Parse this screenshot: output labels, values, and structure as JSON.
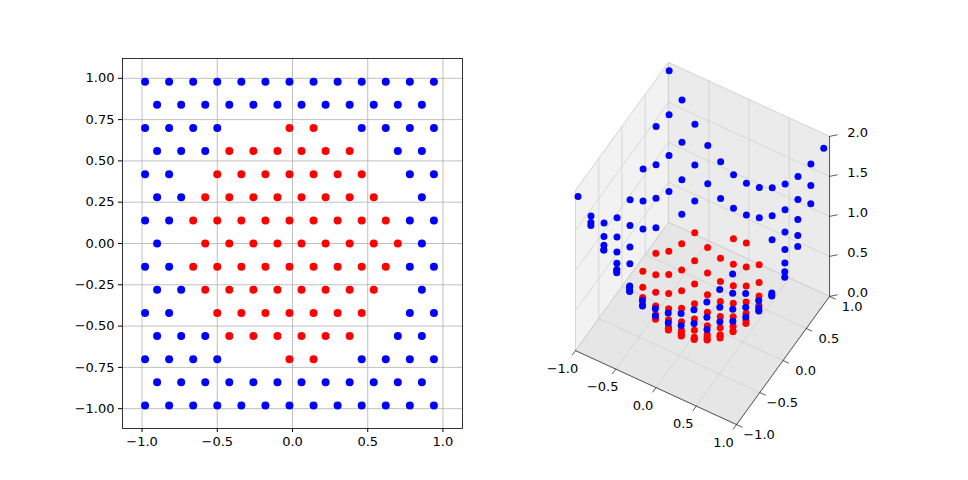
{
  "chart_data": [
    {
      "type": "scatter",
      "xlim": [
        -1.13,
        1.13
      ],
      "ylim": [
        -1.12,
        1.12
      ],
      "xticks": [
        {
          "value": -1,
          "label": "−1.0"
        },
        {
          "value": -0.5,
          "label": "−0.5"
        },
        {
          "value": 0,
          "label": "0.0"
        },
        0.5,
        {
          "value": 1,
          "label": "1.0"
        }
      ],
      "yticks": [
        {
          "value": -1,
          "label": "−1.00"
        },
        {
          "value": -0.75,
          "label": "−0.75"
        },
        {
          "value": -0.5,
          "label": "−0.50"
        },
        {
          "value": -0.25,
          "label": "−0.25"
        },
        {
          "value": 0,
          "label": "0.00"
        },
        0.25,
        {
          "value": 0.5,
          "label": "0.50"
        },
        0.75,
        {
          "value": 1,
          "label": "1.00"
        }
      ],
      "grid": true,
      "series": [
        {
          "color": "red",
          "x": [
            -0.02,
            0.14,
            -0.42,
            -0.26,
            -0.1,
            0.06,
            0.22,
            0.38,
            -0.5,
            -0.34,
            -0.18,
            -0.02,
            0.14,
            0.3,
            0.46,
            -0.58,
            -0.42,
            -0.26,
            -0.1,
            0.06,
            0.22,
            0.38,
            0.54,
            -0.66,
            -0.5,
            -0.34,
            -0.18,
            -0.02,
            0.14,
            0.3,
            0.46,
            0.62,
            -0.58,
            -0.42,
            -0.26,
            -0.1,
            0.06,
            0.22,
            0.38,
            0.54,
            0.7,
            -0.66,
            -0.5,
            -0.34,
            -0.18,
            -0.02,
            0.14,
            0.3,
            0.46,
            0.62,
            -0.58,
            -0.42,
            -0.26,
            -0.1,
            0.06,
            0.22,
            0.38,
            0.54,
            -0.5,
            -0.34,
            -0.18,
            -0.02,
            0.14,
            0.3,
            0.46,
            -0.42,
            -0.26,
            -0.1,
            0.06,
            0.22,
            0.38,
            -0.02,
            0.14
          ],
          "y": [
            -0.7,
            -0.7,
            -0.56,
            -0.56,
            -0.56,
            -0.56,
            -0.56,
            -0.56,
            -0.42,
            -0.42,
            -0.42,
            -0.42,
            -0.42,
            -0.42,
            -0.42,
            -0.28,
            -0.28,
            -0.28,
            -0.28,
            -0.28,
            -0.28,
            -0.28,
            -0.28,
            -0.14,
            -0.14,
            -0.14,
            -0.14,
            -0.14,
            -0.14,
            -0.14,
            -0.14,
            -0.14,
            0,
            0,
            0,
            0,
            0,
            0,
            0,
            0,
            0,
            0.14,
            0.14,
            0.14,
            0.14,
            0.14,
            0.14,
            0.14,
            0.14,
            0.14,
            0.28,
            0.28,
            0.28,
            0.28,
            0.28,
            0.28,
            0.28,
            0.28,
            0.42,
            0.42,
            0.42,
            0.42,
            0.42,
            0.42,
            0.42,
            0.56,
            0.56,
            0.56,
            0.56,
            0.56,
            0.56,
            0.7,
            0.7
          ]
        },
        {
          "color": "blue",
          "x": [
            -0.98,
            -0.82,
            -0.66,
            -0.5,
            -0.34,
            -0.18,
            -0.02,
            0.14,
            0.3,
            0.46,
            0.62,
            0.78,
            0.94,
            -0.9,
            -0.74,
            -0.58,
            -0.42,
            -0.26,
            -0.1,
            0.06,
            0.22,
            0.38,
            0.54,
            0.7,
            0.86,
            -0.98,
            -0.82,
            -0.66,
            -0.5,
            0.46,
            0.62,
            0.78,
            0.94,
            -0.9,
            -0.74,
            -0.58,
            0.7,
            0.86,
            -0.98,
            -0.82,
            0.78,
            0.94,
            -0.9,
            -0.74,
            0.86,
            -0.98,
            -0.82,
            0.78,
            0.94,
            -0.9,
            0.86,
            -0.98,
            -0.82,
            0.78,
            0.94,
            -0.9,
            -0.74,
            0.86,
            -0.98,
            -0.82,
            0.78,
            0.94,
            -0.9,
            -0.74,
            -0.58,
            0.7,
            0.86,
            -0.98,
            -0.82,
            -0.66,
            -0.5,
            0.46,
            0.62,
            0.78,
            0.94,
            -0.9,
            -0.74,
            -0.58,
            -0.42,
            -0.26,
            -0.1,
            0.06,
            0.22,
            0.38,
            0.54,
            0.7,
            0.86,
            -0.98,
            -0.82,
            -0.66,
            -0.5,
            -0.34,
            -0.18,
            -0.02,
            0.14,
            0.3,
            0.46,
            0.62,
            0.78,
            0.94
          ],
          "y": [
            -0.98,
            -0.98,
            -0.98,
            -0.98,
            -0.98,
            -0.98,
            -0.98,
            -0.98,
            -0.98,
            -0.98,
            -0.98,
            -0.98,
            -0.98,
            -0.84,
            -0.84,
            -0.84,
            -0.84,
            -0.84,
            -0.84,
            -0.84,
            -0.84,
            -0.84,
            -0.84,
            -0.84,
            -0.84,
            -0.7,
            -0.7,
            -0.7,
            -0.7,
            -0.7,
            -0.7,
            -0.7,
            -0.7,
            -0.56,
            -0.56,
            -0.56,
            -0.56,
            -0.56,
            -0.42,
            -0.42,
            -0.42,
            -0.42,
            -0.28,
            -0.28,
            -0.28,
            -0.14,
            -0.14,
            -0.14,
            -0.14,
            0,
            0,
            0.14,
            0.14,
            0.14,
            0.14,
            0.28,
            0.28,
            0.28,
            0.42,
            0.42,
            0.42,
            0.42,
            0.56,
            0.56,
            0.56,
            0.56,
            0.56,
            0.7,
            0.7,
            0.7,
            0.7,
            0.7,
            0.7,
            0.7,
            0.7,
            0.84,
            0.84,
            0.84,
            0.84,
            0.84,
            0.84,
            0.84,
            0.84,
            0.84,
            0.84,
            0.84,
            0.84,
            0.98,
            0.98,
            0.98,
            0.98,
            0.98,
            0.98,
            0.98,
            0.98,
            0.98,
            0.98,
            0.98,
            0.98,
            0.98
          ]
        }
      ]
    },
    {
      "type": "scatter3d",
      "xlim": [
        -1,
        1
      ],
      "ylim": [
        -1,
        1
      ],
      "zlim": [
        0,
        2
      ],
      "xticks": [
        {
          "value": -1,
          "label": "−1.0"
        },
        {
          "value": -0.5,
          "label": "−0.5"
        },
        {
          "value": 0,
          "label": "0.0"
        },
        0.5,
        {
          "value": 1,
          "label": "1.0"
        }
      ],
      "yticks": [
        {
          "value": -1,
          "label": "−1.0"
        },
        {
          "value": -0.5,
          "label": "−0.5"
        },
        {
          "value": 0,
          "label": "0.0"
        },
        0.5,
        {
          "value": 1,
          "label": "1.0"
        }
      ],
      "zticks": [
        {
          "value": 0,
          "label": "0.0"
        },
        0.5,
        {
          "value": 1,
          "label": "1.0"
        },
        1.5,
        {
          "value": 2,
          "label": "2.0"
        }
      ],
      "grid": true,
      "series": [
        {
          "color": "red",
          "x": [
            -0.02,
            0.14,
            -0.42,
            -0.26,
            -0.1,
            0.06,
            0.22,
            0.38,
            -0.5,
            -0.34,
            -0.18,
            -0.02,
            0.14,
            0.3,
            0.46,
            -0.58,
            -0.42,
            -0.26,
            -0.1,
            0.06,
            0.22,
            0.38,
            0.54,
            -0.66,
            -0.5,
            -0.34,
            -0.18,
            -0.02,
            0.14,
            0.3,
            0.46,
            0.62,
            -0.58,
            -0.42,
            -0.26,
            -0.1,
            0.06,
            0.22,
            0.38,
            0.54,
            0.7,
            -0.66,
            -0.5,
            -0.34,
            -0.18,
            -0.02,
            0.14,
            0.3,
            0.46,
            0.62,
            -0.58,
            -0.42,
            -0.26,
            -0.1,
            0.06,
            0.22,
            0.38,
            0.54,
            -0.5,
            -0.34,
            -0.18,
            -0.02,
            0.14,
            0.3,
            0.46,
            -0.42,
            -0.26,
            -0.1,
            0.06,
            0.22,
            0.38,
            -0.02,
            0.14
          ],
          "y": [
            -0.7,
            -0.7,
            -0.56,
            -0.56,
            -0.56,
            -0.56,
            -0.56,
            -0.56,
            -0.42,
            -0.42,
            -0.42,
            -0.42,
            -0.42,
            -0.42,
            -0.42,
            -0.28,
            -0.28,
            -0.28,
            -0.28,
            -0.28,
            -0.28,
            -0.28,
            -0.28,
            -0.14,
            -0.14,
            -0.14,
            -0.14,
            -0.14,
            -0.14,
            -0.14,
            -0.14,
            -0.14,
            0,
            0,
            0,
            0,
            0,
            0,
            0,
            0,
            0,
            0.14,
            0.14,
            0.14,
            0.14,
            0.14,
            0.14,
            0.14,
            0.14,
            0.14,
            0.28,
            0.28,
            0.28,
            0.28,
            0.28,
            0.28,
            0.28,
            0.28,
            0.42,
            0.42,
            0.42,
            0.42,
            0.42,
            0.42,
            0.42,
            0.56,
            0.56,
            0.56,
            0.56,
            0.56,
            0.56,
            0.7,
            0.7
          ],
          "z": [
            0.49,
            0.51,
            0.49,
            0.38,
            0.32,
            0.32,
            0.36,
            0.46,
            0.43,
            0.29,
            0.21,
            0.18,
            0.2,
            0.27,
            0.39,
            0.41,
            0.25,
            0.15,
            0.09,
            0.08,
            0.13,
            0.22,
            0.37,
            0.46,
            0.27,
            0.14,
            0.05,
            0.02,
            0.04,
            0.11,
            0.23,
            0.4,
            0.34,
            0.18,
            0.07,
            0.01,
            0,
            0.05,
            0.14,
            0.29,
            0.49,
            0.46,
            0.27,
            0.14,
            0.05,
            0.02,
            0.04,
            0.11,
            0.23,
            0.4,
            0.41,
            0.25,
            0.15,
            0.09,
            0.08,
            0.13,
            0.22,
            0.37,
            0.43,
            0.29,
            0.21,
            0.18,
            0.2,
            0.27,
            0.39,
            0.49,
            0.38,
            0.32,
            0.32,
            0.36,
            0.46,
            0.49,
            0.51
          ]
        },
        {
          "color": "blue",
          "x": [
            -0.98,
            -0.82,
            -0.66,
            -0.5,
            -0.34,
            -0.18,
            -0.02,
            0.14,
            0.3,
            0.46,
            0.62,
            0.78,
            0.94,
            -0.9,
            -0.74,
            -0.58,
            -0.42,
            -0.26,
            -0.1,
            0.06,
            0.22,
            0.38,
            0.54,
            0.7,
            0.86,
            -0.98,
            -0.82,
            -0.66,
            -0.5,
            0.46,
            0.62,
            0.78,
            0.94,
            -0.9,
            -0.74,
            -0.58,
            0.7,
            0.86,
            -0.98,
            -0.82,
            0.78,
            0.94,
            -0.9,
            -0.74,
            0.86,
            -0.98,
            -0.82,
            0.78,
            0.94,
            -0.9,
            0.86,
            -0.98,
            -0.82,
            0.78,
            0.94,
            -0.9,
            -0.74,
            0.86,
            -0.98,
            -0.82,
            0.78,
            0.94,
            -0.9,
            -0.74,
            -0.58,
            0.7,
            0.86,
            -0.98,
            -0.82,
            -0.66,
            -0.5,
            0.46,
            0.62,
            0.78,
            0.94,
            -0.9,
            -0.74,
            -0.58,
            -0.42,
            -0.26,
            -0.1,
            0.06,
            0.22,
            0.38,
            0.54,
            0.7,
            0.86,
            -0.98,
            -0.82,
            -0.66,
            -0.5,
            -0.34,
            -0.18,
            -0.02,
            0.14,
            0.3,
            0.46,
            0.62,
            0.78,
            0.94
          ],
          "y": [
            -0.98,
            -0.98,
            -0.98,
            -0.98,
            -0.98,
            -0.98,
            -0.98,
            -0.98,
            -0.98,
            -0.98,
            -0.98,
            -0.98,
            -0.98,
            -0.84,
            -0.84,
            -0.84,
            -0.84,
            -0.84,
            -0.84,
            -0.84,
            -0.84,
            -0.84,
            -0.84,
            -0.84,
            -0.84,
            -0.7,
            -0.7,
            -0.7,
            -0.7,
            -0.7,
            -0.7,
            -0.7,
            -0.7,
            -0.56,
            -0.56,
            -0.56,
            -0.56,
            -0.56,
            -0.42,
            -0.42,
            -0.42,
            -0.42,
            -0.28,
            -0.28,
            -0.28,
            -0.14,
            -0.14,
            -0.14,
            -0.14,
            0,
            0,
            0.14,
            0.14,
            0.14,
            0.14,
            0.28,
            0.28,
            0.28,
            0.42,
            0.42,
            0.42,
            0.42,
            0.56,
            0.56,
            0.56,
            0.56,
            0.56,
            0.7,
            0.7,
            0.7,
            0.7,
            0.7,
            0.7,
            0.7,
            0.7,
            0.84,
            0.84,
            0.84,
            0.84,
            0.84,
            0.84,
            0.84,
            0.84,
            0.84,
            0.84,
            0.84,
            0.84,
            0.98,
            0.98,
            0.98,
            0.98,
            0.98,
            0.98,
            0.98,
            0.98,
            0.98,
            0.98,
            0.98,
            0.98,
            0.98
          ],
          "z": [
            1.92,
            1.63,
            1.4,
            1.21,
            1.08,
            0.99,
            0.96,
            0.98,
            1.05,
            1.17,
            1.34,
            1.57,
            1.84,
            1.52,
            1.25,
            1.04,
            0.88,
            0.77,
            0.72,
            0.71,
            0.75,
            0.85,
            1,
            1.2,
            1.45,
            1.45,
            1.16,
            0.93,
            0.74,
            0.7,
            0.87,
            1.1,
            1.37,
            1.12,
            0.86,
            0.65,
            0.8,
            1.05,
            1.14,
            0.85,
            0.78,
            1.06,
            0.89,
            0.63,
            0.82,
            0.98,
            0.69,
            0.63,
            0.9,
            0.81,
            0.74,
            0.98,
            0.69,
            0.63,
            0.9,
            0.89,
            0.63,
            0.82,
            1.14,
            0.85,
            0.78,
            1.06,
            1.12,
            0.86,
            0.65,
            0.8,
            1.05,
            1.45,
            1.16,
            0.93,
            0.74,
            0.7,
            0.87,
            1.1,
            1.37,
            1.52,
            1.25,
            1.04,
            0.88,
            0.77,
            0.72,
            0.71,
            0.75,
            0.85,
            1,
            1.2,
            1.45,
            1.92,
            1.63,
            1.4,
            1.21,
            1.08,
            0.99,
            0.96,
            0.98,
            1.05,
            1.17,
            1.34,
            1.57,
            1.84
          ]
        }
      ]
    }
  ]
}
